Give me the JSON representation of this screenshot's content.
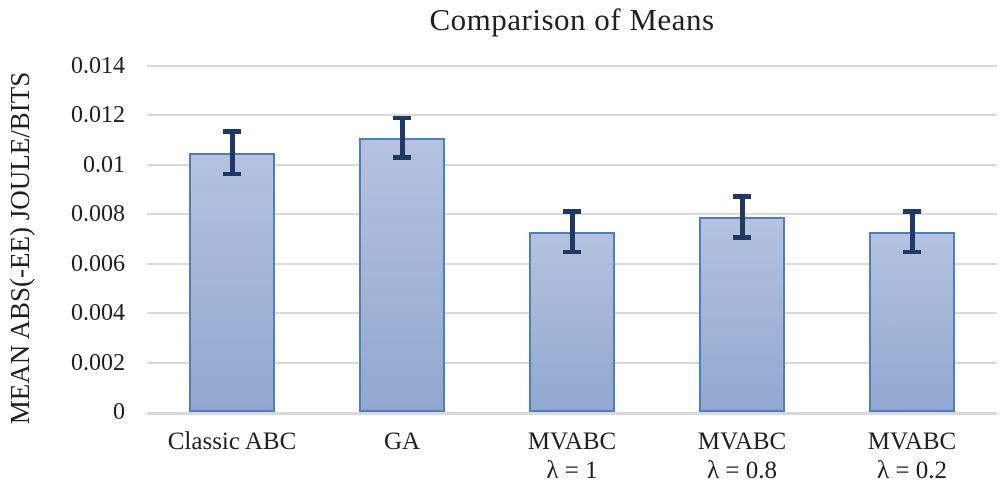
{
  "chart_data": {
    "type": "bar",
    "title": "Comparison of Means",
    "xlabel": "",
    "ylabel": "MEAN ABS(-EE) JOULE/BITS",
    "categories": [
      "Classic ABC",
      "GA",
      "MVABC λ = 1",
      "MVABC λ = 0.8",
      "MVABC λ = 0.2"
    ],
    "category_label_lines": [
      [
        "Classic ABC"
      ],
      [
        "GA"
      ],
      [
        "MVABC",
        "λ = 1"
      ],
      [
        "MVABC",
        "λ = 0.8"
      ],
      [
        "MVABC",
        "λ = 0.2"
      ]
    ],
    "values": [
      0.0105,
      0.0111,
      0.0073,
      0.0079,
      0.0073
    ],
    "error_bars": [
      0.00085,
      0.0008,
      0.00082,
      0.00083,
      0.00082
    ],
    "ylim": [
      0,
      0.014
    ],
    "ytick_step": 0.002,
    "ytick_labels": [
      "0",
      "0.002",
      "0.004",
      "0.006",
      "0.008",
      "0.01",
      "0.012",
      "0.014"
    ],
    "grid": true,
    "legend": "none",
    "colors": {
      "bar_fill_top": "#b4c2df",
      "bar_fill_bottom": "#92a8d0",
      "bar_border": "#4f7dbf",
      "error_bar": "#1f3864",
      "gridline": "#d9d9d9",
      "baseline": "#d9d9d9",
      "text": "#1f1f1f"
    }
  }
}
